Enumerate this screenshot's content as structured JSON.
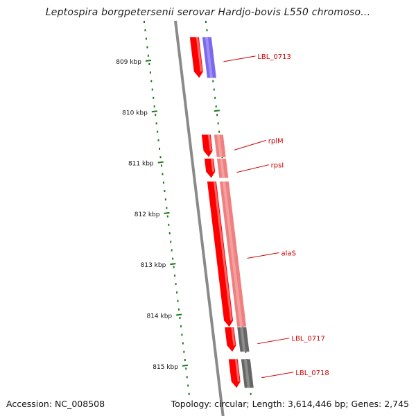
{
  "title": "Leptospira borgpetersenii serovar Hardjo-bovis L550 chromoso...",
  "accession": "Accession: NC_008508",
  "summary": "Topology: circular; Length: 3,614,446 bp; Genes: 2,745",
  "colors": {
    "backbone": "#8a8a8a",
    "gene_red": "#ff0000",
    "pink": "#f08080",
    "purple": "#7b68ee",
    "gray_block": "#666666",
    "tick_green": "#1a7a1a",
    "label_red": "#d40000"
  },
  "scale": {
    "ticks": [
      {
        "label": "809 kbp",
        "kbp": 809
      },
      {
        "label": "810 kbp",
        "kbp": 810
      },
      {
        "label": "811 kbp",
        "kbp": 811
      },
      {
        "label": "812 kbp",
        "kbp": 812
      },
      {
        "label": "813 kbp",
        "kbp": 813
      },
      {
        "label": "814 kbp",
        "kbp": 814
      },
      {
        "label": "815 kbp",
        "kbp": 815
      }
    ]
  },
  "genes": [
    {
      "label": "LBL_0713",
      "start_kbp": 808.53,
      "end_kbp": 809.33,
      "color": "#ff0000",
      "band": "#7b68ee"
    },
    {
      "label": "rplM",
      "start_kbp": 810.45,
      "end_kbp": 810.89,
      "color": "#ff0000",
      "band": "#f08080"
    },
    {
      "label": "rpsI",
      "start_kbp": 810.92,
      "end_kbp": 811.3,
      "color": "#ff0000",
      "band": "#f08080"
    },
    {
      "label": "alaS",
      "start_kbp": 811.37,
      "end_kbp": 814.23,
      "color": "#ff0000",
      "band": "#f08080"
    },
    {
      "label": "LBL_0717",
      "start_kbp": 814.24,
      "end_kbp": 814.72,
      "color": "#ff0000",
      "band": "#666666"
    },
    {
      "label": "LBL_0718",
      "start_kbp": 814.87,
      "end_kbp": 815.43,
      "color": "#ff0000",
      "band": "#666666"
    }
  ]
}
